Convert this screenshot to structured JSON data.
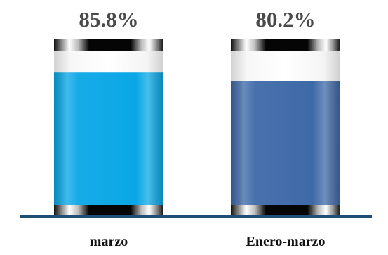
{
  "chart_data": {
    "type": "bar",
    "categories": [
      "marzo",
      "Enero-marzo"
    ],
    "series": [
      {
        "values": [
          85.8,
          80.2
        ]
      }
    ],
    "value_labels": [
      "85.8%",
      "80.2%"
    ],
    "ylim": [
      0,
      100
    ],
    "bar_colors": [
      "#0aa7e6",
      "#3f6aa8"
    ],
    "axis_color": "#1f4e79",
    "label_color": "#4a4a4a",
    "category_label_color": "#111111",
    "grid": false,
    "legend": false
  }
}
